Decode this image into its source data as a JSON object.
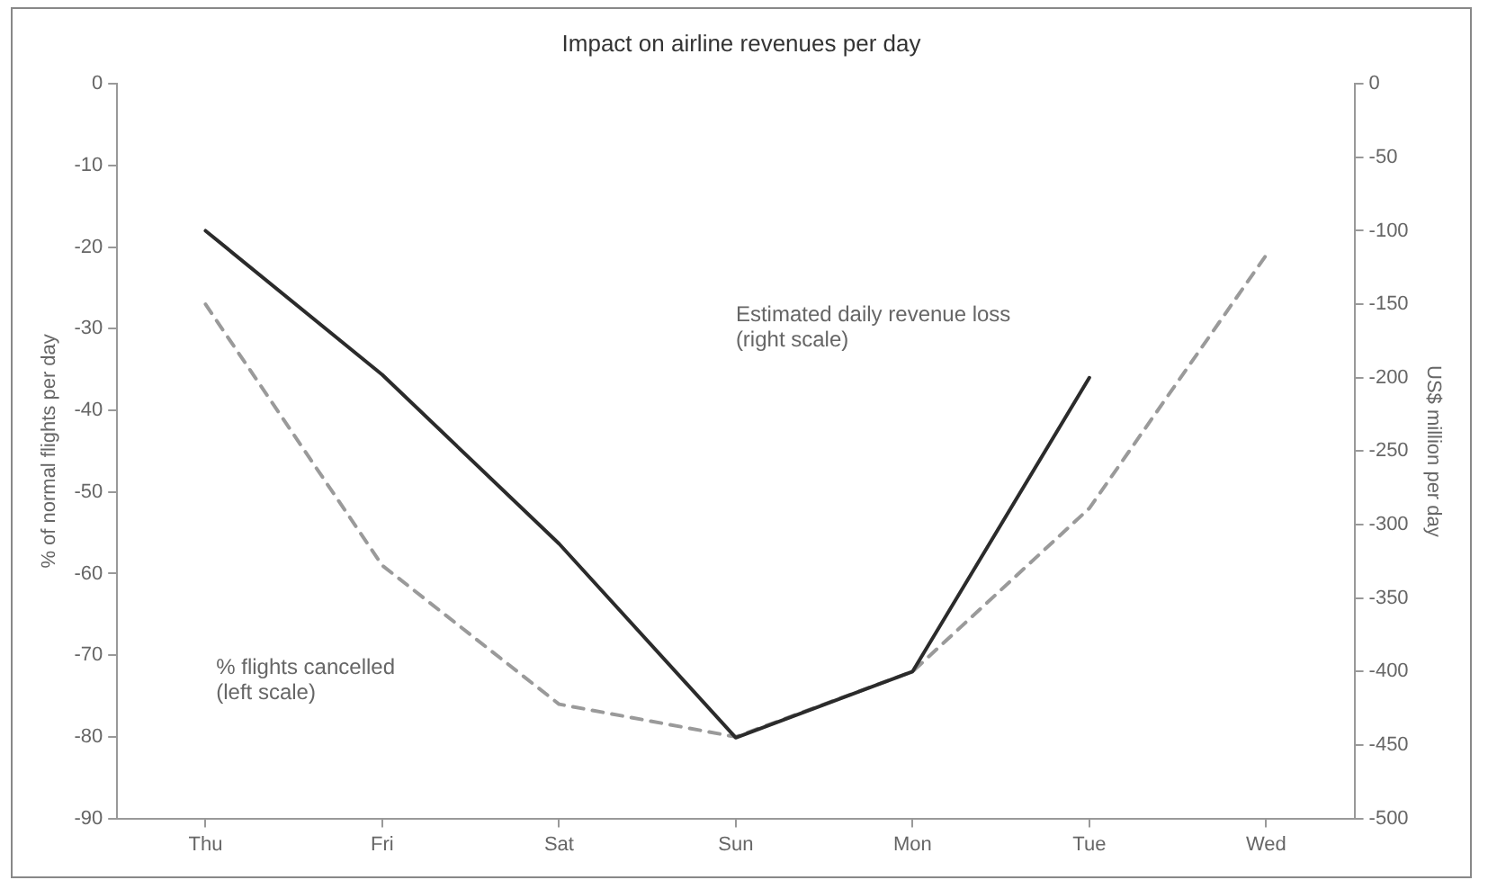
{
  "chart_data": {
    "type": "line",
    "title": "Impact on airline revenues per day",
    "ylabel": "% of normal flights per day",
    "y2label": "US$ million per day",
    "categories": [
      "Thu",
      "Fri",
      "Sat",
      "Sun",
      "Mon",
      "Tue",
      "Wed"
    ],
    "series": [
      {
        "color": "#2b2b2b",
        "axis": "y2",
        "line_style": "solid",
        "values": [
          -100,
          -198,
          -313,
          -445,
          -400,
          -200,
          null
        ]
      },
      {
        "color": "#9a9a9a",
        "axis": "y",
        "line_style": "dashed",
        "values": [
          -27,
          -59,
          -76,
          -80,
          -72,
          -52,
          -21
        ]
      }
    ],
    "ylim": [
      -90,
      0
    ],
    "yticks": [
      -90,
      -80,
      -70,
      -60,
      -50,
      -40,
      -30,
      -20,
      -10,
      0
    ],
    "y2lim": [
      -500,
      0
    ],
    "y2ticks": [
      -500,
      -450,
      -400,
      -350,
      -300,
      -250,
      -200,
      -150,
      -100,
      -50,
      0
    ],
    "annotations": [
      "Estimated daily revenue loss\n(right scale)",
      "% flights cancelled\n(left scale)"
    ],
    "grid": false,
    "legend": false,
    "marker": "none"
  }
}
